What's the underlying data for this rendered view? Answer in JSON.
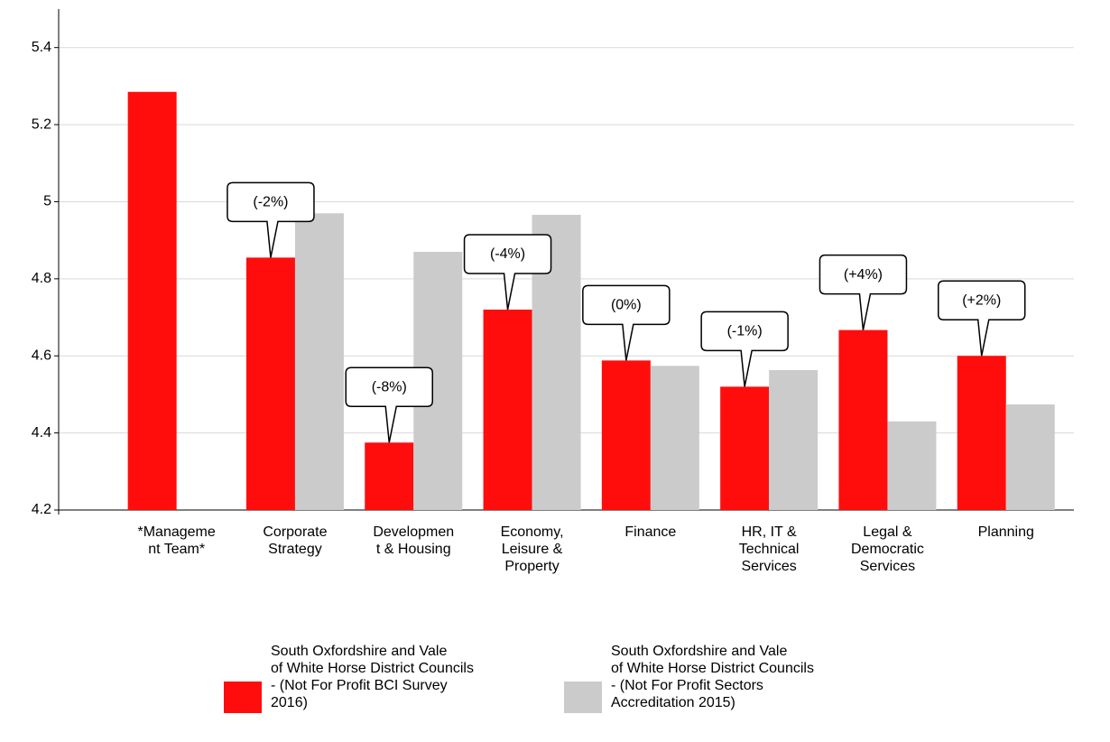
{
  "chart_data": {
    "type": "bar",
    "categories": [
      "*Manageme\nnt Team*",
      "Corporate\nStrategy",
      "Developmen\nt & Housing",
      "Economy,\nLeisure &\nProperty",
      "Finance",
      "HR, IT &\nTechnical\nServices",
      "Legal &\nDemocratic\nServices",
      "Planning"
    ],
    "series": [
      {
        "name": "South Oxfordshire and Vale\nof White Horse District Councils\n- (Not For Profit BCI Survey\n2016)",
        "color": "#ff0d0d",
        "values": [
          5.285,
          4.855,
          4.375,
          4.72,
          4.588,
          4.52,
          4.667,
          4.6
        ]
      },
      {
        "name": "South Oxfordshire and Vale\nof White Horse District Councils\n- (Not For Profit Sectors\nAccreditation 2015)",
        "color": "#cbcbcb",
        "values": [
          null,
          4.97,
          4.87,
          4.966,
          4.574,
          4.563,
          4.43,
          4.474
        ]
      }
    ],
    "annotations": [
      null,
      "(-2%)",
      "(-8%)",
      "(-4%)",
      "(0%)",
      "(-1%)",
      "(+4%)",
      "(+2%)"
    ],
    "ylim": [
      4.2,
      5.5
    ],
    "yticks": [
      4.2,
      4.4,
      4.6,
      4.8,
      5,
      5.2,
      5.4
    ],
    "grid": true
  }
}
